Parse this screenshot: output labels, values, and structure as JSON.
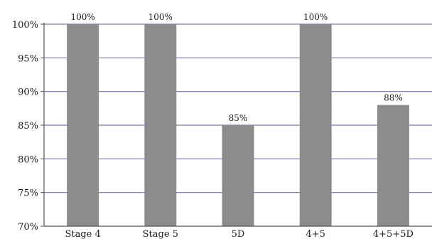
{
  "chart_data": {
    "type": "bar",
    "categories": [
      "Stage 4",
      "Stage 5",
      "5D",
      "4+5",
      "4+5+5D"
    ],
    "values": [
      100,
      100,
      85,
      100,
      88
    ],
    "value_unit": "%",
    "data_labels": [
      "100%",
      "100%",
      "85%",
      "100%",
      "88%"
    ],
    "ylim": [
      70,
      100
    ],
    "yticks": [
      70,
      75,
      80,
      85,
      90,
      95,
      100
    ],
    "ytick_labels": [
      "70%",
      "75%",
      "80%",
      "85%",
      "90%",
      "95%",
      "100%"
    ],
    "grid": true,
    "title": "",
    "xlabel": "",
    "ylabel": "",
    "colors": {
      "bar": "#8c8c8c",
      "grid": "#7b74a6",
      "axis": "#555555"
    }
  }
}
